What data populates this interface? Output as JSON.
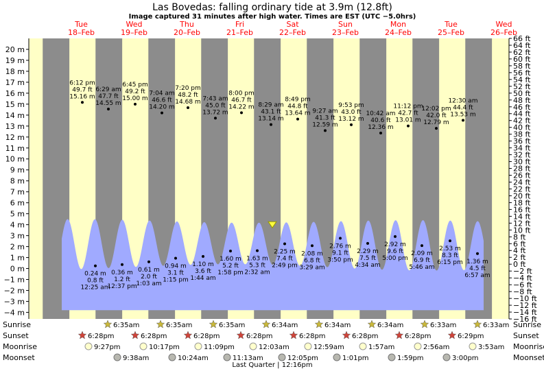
{
  "header": {
    "title": "Las Bovedas: falling  ordinary tide at 3.9m (12.8ft)",
    "subtitle": "Image captured 31 minutes after high water. Times are EST (UTC −5.0hrs)"
  },
  "days": [
    {
      "dow": "Tue",
      "date": "18–Feb"
    },
    {
      "dow": "Wed",
      "date": "19–Feb"
    },
    {
      "dow": "Thu",
      "date": "20–Feb"
    },
    {
      "dow": "Fri",
      "date": "21–Feb"
    },
    {
      "dow": "Sat",
      "date": "22–Feb"
    },
    {
      "dow": "Sun",
      "date": "23–Feb"
    },
    {
      "dow": "Mon",
      "date": "24–Feb"
    },
    {
      "dow": "Tue",
      "date": "25–Feb"
    },
    {
      "dow": "Wed",
      "date": "26–Feb"
    }
  ],
  "colors": {
    "day_band": "#ffffc6",
    "night_band": "#8c8c8c",
    "tide_fill": "#a0aaff",
    "day_label": "#ff0000",
    "now_marker": "#ffff40",
    "sun_star": "#c9b83a",
    "sunset_star": "#d0443a",
    "moon_light": "#ffffcc",
    "moon_dark": "#b8b8b0"
  },
  "chart_data": {
    "type": "area",
    "ylabel_left": "m",
    "ylabel_right": "ft",
    "ylim": [
      -4.6,
      21
    ],
    "ylim_ft": [
      -16,
      66
    ],
    "left_ticks": [
      "−4 m",
      "−3 m",
      "−2 m",
      "−1 m",
      "0 m",
      "1 m",
      "2 m",
      "3 m",
      "4 m",
      "5 m",
      "6 m",
      "7 m",
      "8 m",
      "9 m",
      "10 m",
      "11 m",
      "12 m",
      "13 m",
      "14 m",
      "15 m",
      "16 m",
      "17 m",
      "18 m",
      "19 m",
      "20 m"
    ],
    "right_ticks": [
      "−16 ft",
      "−14 ft",
      "−12 ft",
      "−10 ft",
      "−8 ft",
      "−6 ft",
      "−4 ft",
      "−2 ft",
      "0 ft",
      "2 ft",
      "4 ft",
      "6 ft",
      "8 ft",
      "10 ft",
      "12 ft",
      "14 ft",
      "16 ft",
      "18 ft",
      "20 ft",
      "22 ft",
      "24 ft",
      "26 ft",
      "28 ft",
      "30 ft",
      "32 ft",
      "34 ft",
      "36 ft",
      "38 ft",
      "40 ft",
      "42 ft",
      "44 ft",
      "46 ft",
      "48 ft",
      "50 ft",
      "52 ft",
      "54 ft",
      "56 ft",
      "58 ft",
      "60 ft",
      "62 ft",
      "64 ft",
      "66 ft"
    ],
    "tide_range_m": [
      -0.2,
      4.5
    ],
    "series": [],
    "now_level_m": 3.9,
    "high_annotations": [
      {
        "time": "6:12 pm",
        "height_pct": "49.7 ft",
        "height_ft": "15.16 m",
        "value": 15.16
      },
      {
        "time": "6:29 am",
        "height_pct": "47.7 ft",
        "height_ft": "14.55 m",
        "value": 14.55
      },
      {
        "time": "6:45 pm",
        "height_pct": "49.2 ft",
        "height_ft": "15.00 m",
        "value": 15.0
      },
      {
        "time": "7:04 am",
        "height_pct": "46.6 ft",
        "height_ft": "14.20 m",
        "value": 14.2
      },
      {
        "time": "7:20 pm",
        "height_pct": "48.2 ft",
        "height_ft": "14.68 m",
        "value": 14.68
      },
      {
        "time": "7:43 am",
        "height_pct": "45.0 ft",
        "height_ft": "13.72 m",
        "value": 13.72
      },
      {
        "time": "8:00 pm",
        "height_pct": "46.7 ft",
        "height_ft": "14.22 m",
        "value": 14.22
      },
      {
        "time": "8:29 am",
        "height_pct": "43.1 ft",
        "height_ft": "13.14 m",
        "value": 13.14
      },
      {
        "time": "8:49 pm",
        "height_pct": "44.8 ft",
        "height_ft": "13.64 m",
        "value": 13.64
      },
      {
        "time": "9:27 am",
        "height_pct": "41.3 ft",
        "height_ft": "12.59 m",
        "value": 12.59
      },
      {
        "time": "9:53 pm",
        "height_pct": "43.0 ft",
        "height_ft": "13.12 m",
        "value": 13.12
      },
      {
        "time": "10:42 am",
        "height_pct": "40.6 ft",
        "height_ft": "12.36 m",
        "value": 12.36
      },
      {
        "time": "11:12 pm",
        "height_pct": "42.7 ft",
        "height_ft": "13.01 m",
        "value": 13.01
      },
      {
        "time": "12:02 pm",
        "height_pct": "42.0 ft",
        "height_ft": "12.79 m",
        "value": 12.79
      },
      {
        "time": "12:30 am",
        "height_pct": "44.4 ft",
        "height_ft": "13.53 m",
        "value": 13.53
      }
    ],
    "low_annotations": [
      {
        "height_m": "0.24 m",
        "height_ft": "0.8 ft",
        "time": "12:25 am",
        "value": 0.24
      },
      {
        "height_m": "0.36 m",
        "height_ft": "1.2 ft",
        "time": "12:37 pm",
        "value": 0.36
      },
      {
        "height_m": "0.61 m",
        "height_ft": "2.0 ft",
        "time": "1:03 am",
        "value": 0.61
      },
      {
        "height_m": "0.94 m",
        "height_ft": "3.1 ft",
        "time": "1:15 pm",
        "value": 0.94
      },
      {
        "height_m": "1.10 m",
        "height_ft": "3.6 ft",
        "time": "1:44 am",
        "value": 1.1
      },
      {
        "height_m": "1.60 m",
        "height_ft": "5.2 ft",
        "time": "1:58 pm",
        "value": 1.6
      },
      {
        "height_m": "1.63 m",
        "height_ft": "5.3 ft",
        "time": "2:32 am",
        "value": 1.63
      },
      {
        "height_m": "2.25 m",
        "height_ft": "7.4 ft",
        "time": "2:49 pm",
        "value": 2.25
      },
      {
        "height_m": "2.08 m",
        "height_ft": "6.8 ft",
        "time": "3:29 am",
        "value": 2.08
      },
      {
        "height_m": "2.76 m",
        "height_ft": "9.1 ft",
        "time": "3:50 pm",
        "value": 2.76
      },
      {
        "height_m": "2.29 m",
        "height_ft": "7.5 ft",
        "time": "4:34 am",
        "value": 2.29
      },
      {
        "height_m": "2.92 m",
        "height_ft": "9.6 ft",
        "time": "5:00 pm",
        "value": 2.92
      },
      {
        "height_m": "2.09 m",
        "height_ft": "6.9 ft",
        "time": "5:46 am",
        "value": 2.09
      },
      {
        "height_m": "2.53 m",
        "height_ft": "8.3 ft",
        "time": "6:15 pm",
        "value": 2.53
      },
      {
        "height_m": "1.36 m",
        "height_ft": "4.5 ft",
        "time": "6:57 am",
        "value": 1.36
      }
    ]
  },
  "astro": {
    "labels": {
      "sunrise": "Sunrise",
      "sunset": "Sunset",
      "moonrise": "Moonrise",
      "moonset": "Moonset"
    },
    "sunrise": [
      "6:35am",
      "6:35am",
      "6:35am",
      "6:34am",
      "6:34am",
      "6:34am",
      "6:33am",
      "6:33am"
    ],
    "sunset": [
      "6:28pm",
      "6:28pm",
      "6:28pm",
      "6:28pm",
      "6:28pm",
      "6:28pm",
      "6:28pm",
      "6:29pm"
    ],
    "moonrise": [
      "9:27pm",
      "10:17pm",
      "11:09pm",
      "12:03am",
      "12:59am",
      "1:57am",
      "2:56am",
      "3:53am"
    ],
    "moonset": [
      "9:38am",
      "10:24am",
      "11:13am",
      "12:05pm",
      "1:01pm",
      "1:59pm",
      "3:00pm"
    ],
    "moon_phase": "Last Quarter | 12:16pm"
  }
}
